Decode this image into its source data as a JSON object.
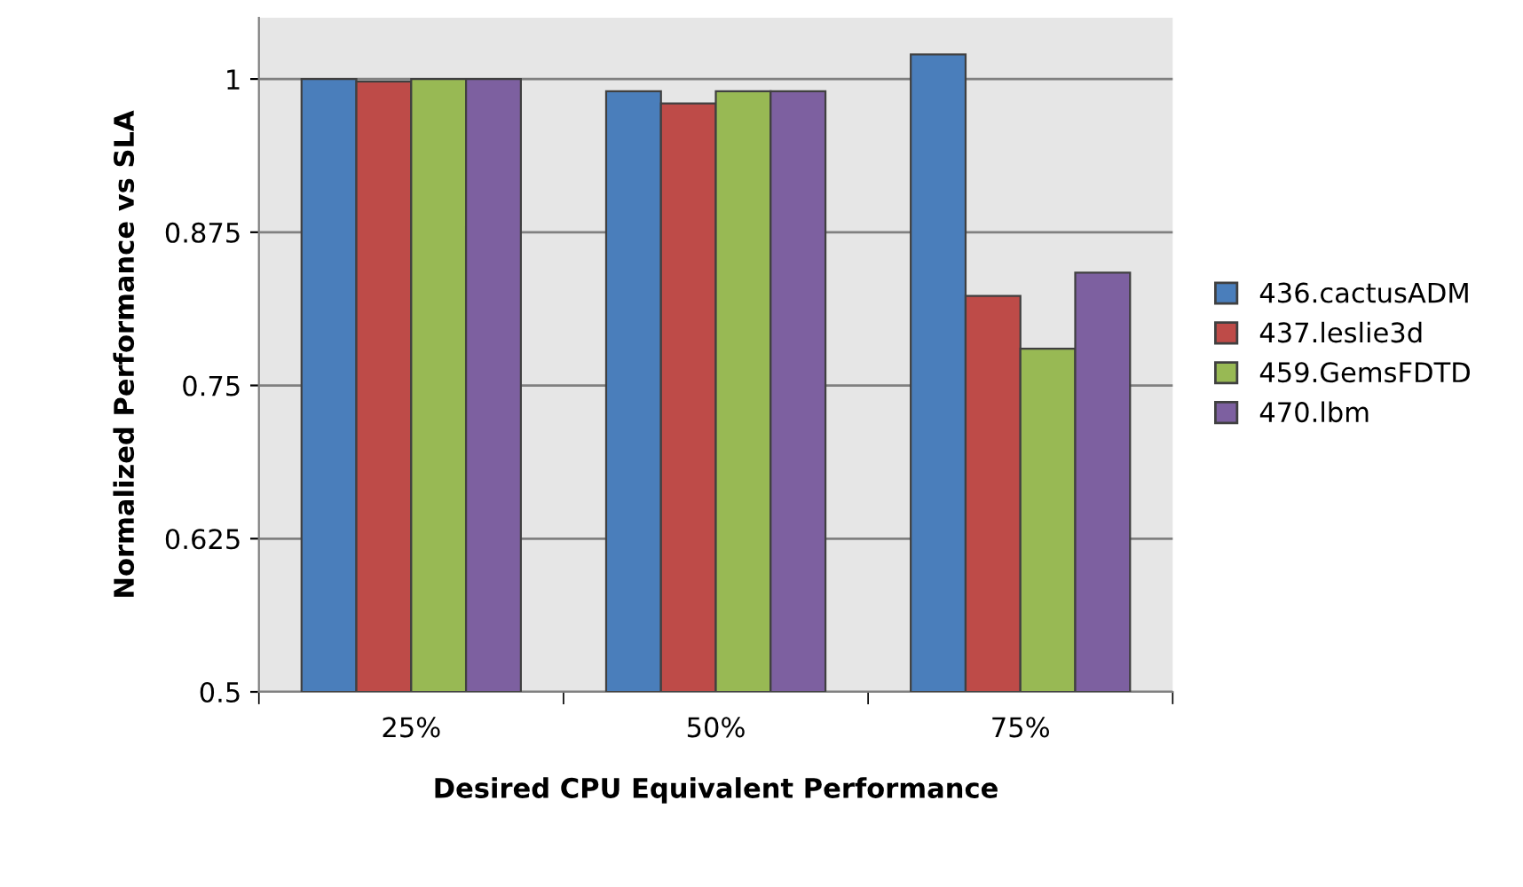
{
  "chart_data": {
    "type": "bar",
    "xlabel": "Desired CPU Equivalent Performance",
    "ylabel": "Normalized Performance vs SLA",
    "categories": [
      "25%",
      "50%",
      "75%"
    ],
    "series": [
      {
        "name": "436.cactusADM",
        "color": "#4a7ebb",
        "values": [
          1.0,
          0.99,
          1.02
        ]
      },
      {
        "name": "437.leslie3d",
        "color": "#be4b48",
        "values": [
          0.998,
          0.98,
          0.823
        ]
      },
      {
        "name": "459.GemsFDTD",
        "color": "#98b954",
        "values": [
          1.0,
          0.99,
          0.78
        ]
      },
      {
        "name": "470.lbm",
        "color": "#7d60a0",
        "values": [
          1.0,
          0.99,
          0.842
        ]
      }
    ],
    "ylim": [
      0.5,
      1.05
    ],
    "yticks": [
      0.5,
      0.625,
      0.75,
      0.875,
      1
    ],
    "grid": "y",
    "legend": "right"
  }
}
